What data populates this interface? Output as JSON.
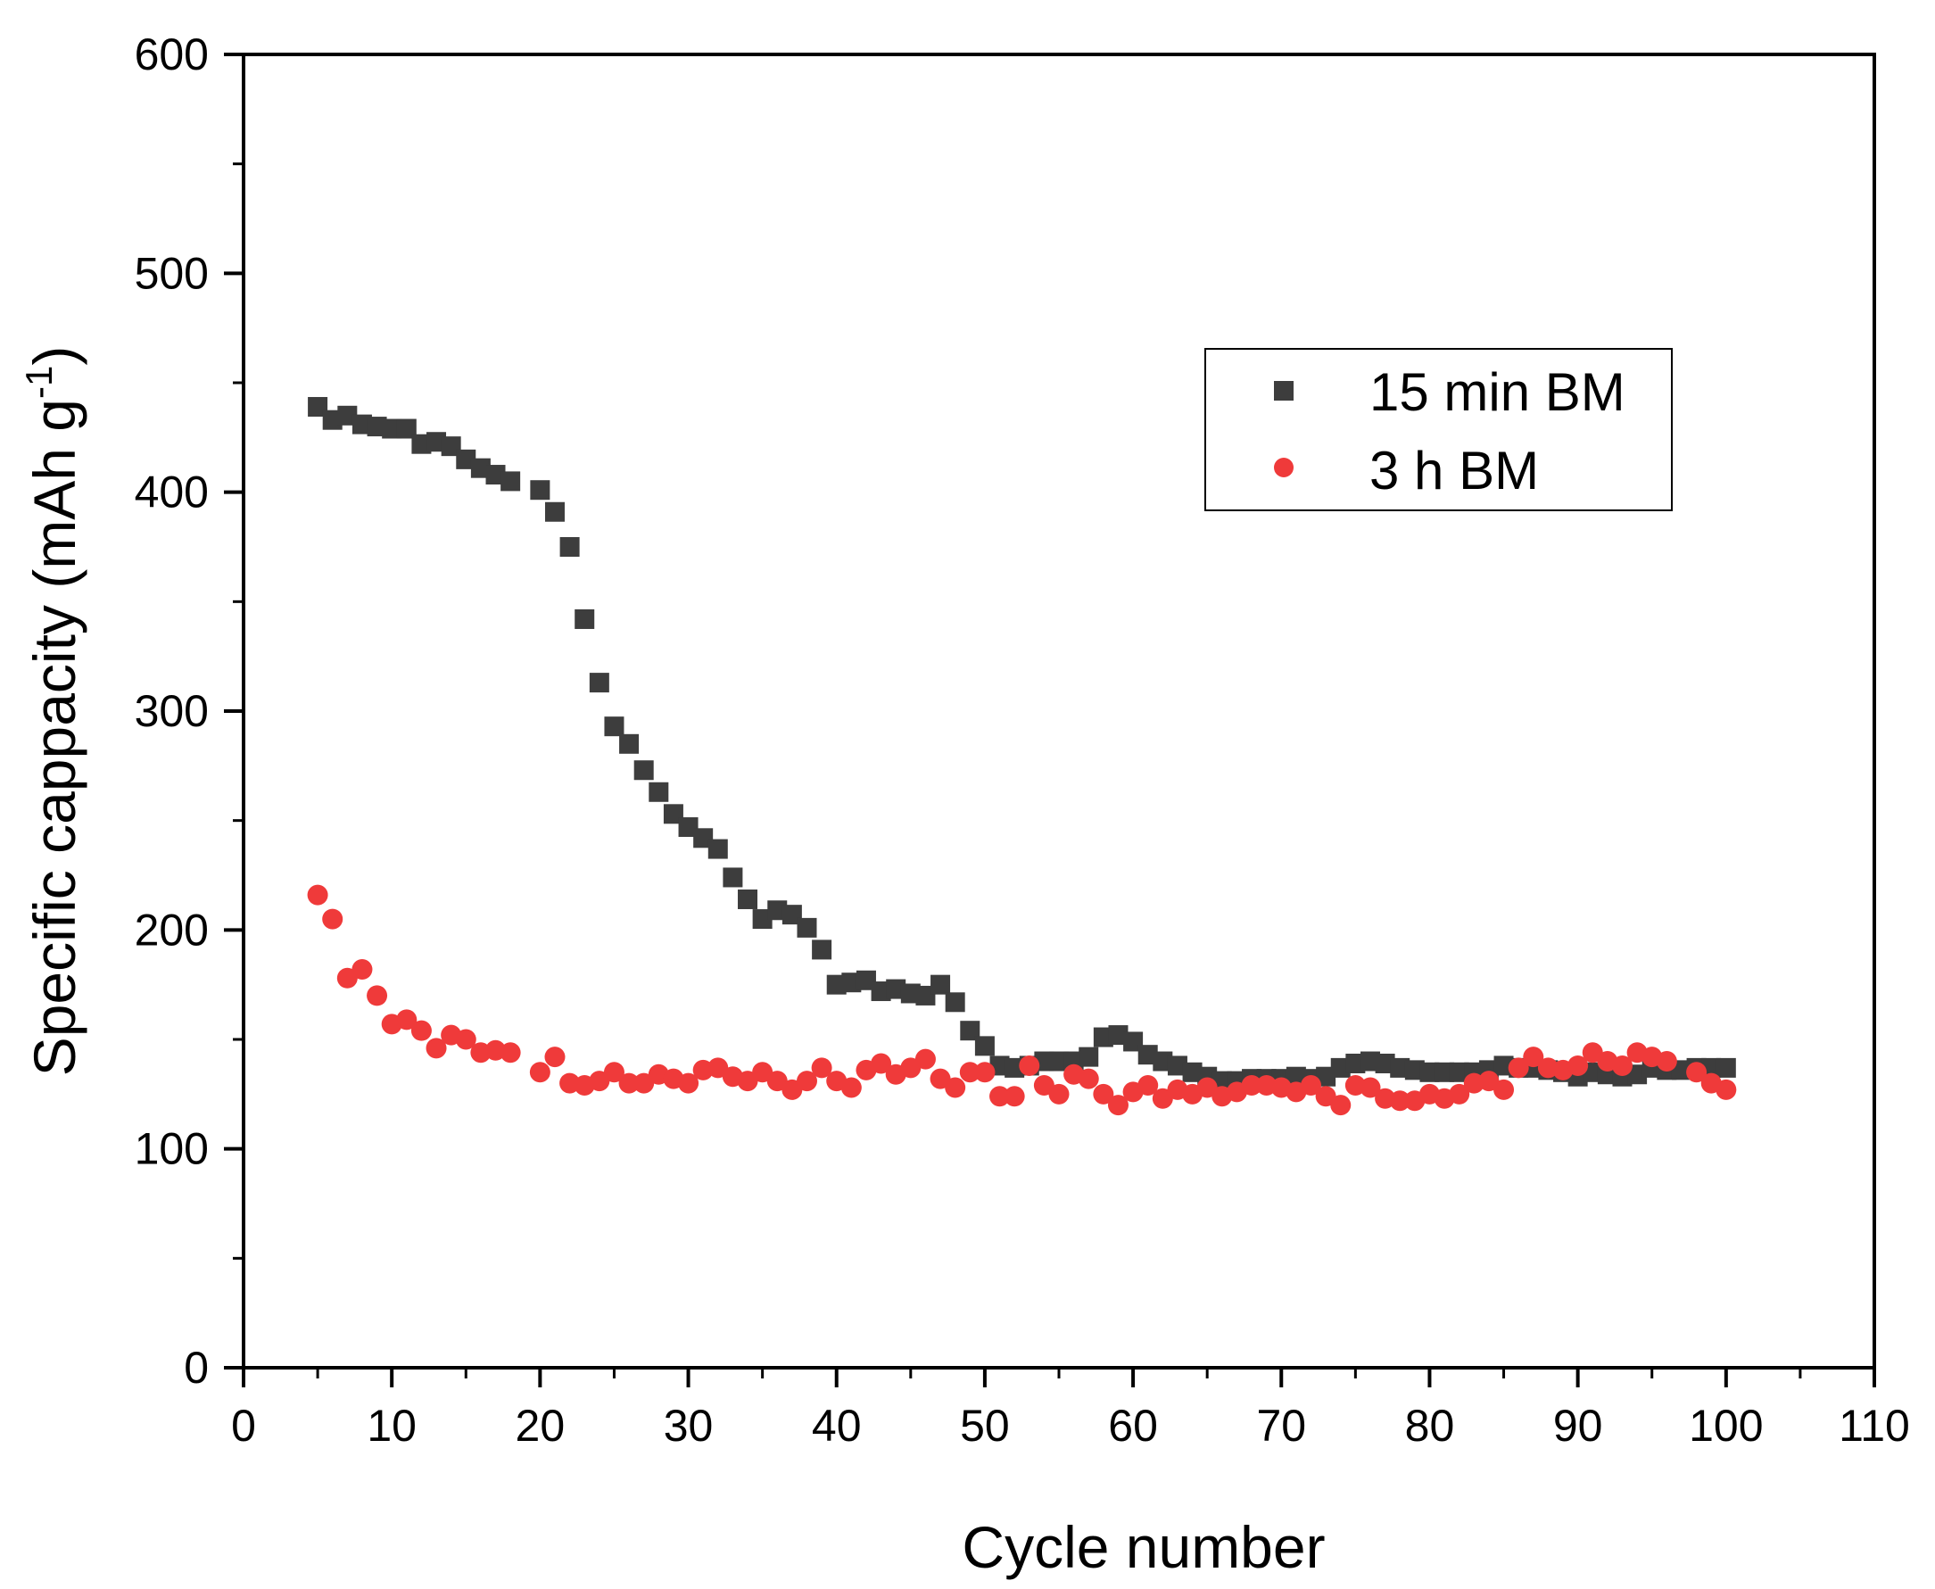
{
  "chart_data": {
    "type": "scatter",
    "title": "",
    "xlabel": "Cycle number",
    "ylabel": {
      "main": "Specific cappacity (mAh g",
      "superscript": "-1",
      "close": ")"
    },
    "xlim": [
      0,
      110
    ],
    "ylim": [
      0,
      600
    ],
    "xticks": [
      "0",
      "10",
      "20",
      "30",
      "40",
      "50",
      "60",
      "70",
      "80",
      "90",
      "100",
      "110"
    ],
    "yticks": [
      "0",
      "100",
      "200",
      "300",
      "400",
      "500",
      "600"
    ],
    "legend_position": "upper-right",
    "series": [
      {
        "name": "15 min BM",
        "marker": "square",
        "color": "#3d3d3d",
        "x": [
          5,
          6,
          7,
          8,
          9,
          10,
          11,
          12,
          13,
          14,
          15,
          16,
          17,
          18,
          20,
          21,
          22,
          23,
          24,
          25,
          26,
          27,
          28,
          29,
          30,
          31,
          32,
          33,
          34,
          35,
          36,
          37,
          38,
          39,
          40,
          41,
          42,
          43,
          44,
          45,
          46,
          47,
          48,
          49,
          50,
          51,
          52,
          53,
          54,
          55,
          56,
          57,
          58,
          59,
          60,
          61,
          62,
          63,
          64,
          65,
          66,
          67,
          68,
          69,
          70,
          71,
          72,
          73,
          74,
          75,
          76,
          77,
          78,
          79,
          80,
          81,
          82,
          83,
          84,
          85,
          86,
          87,
          88,
          89,
          90,
          91,
          92,
          93,
          94,
          95,
          96,
          97,
          98,
          99,
          100
        ],
        "y": [
          439,
          433,
          435,
          431,
          430,
          429,
          429,
          422,
          423,
          421,
          415,
          411,
          408,
          405,
          401,
          391,
          375,
          342,
          313,
          293,
          285,
          273,
          263,
          253,
          247,
          242,
          237,
          224,
          214,
          205,
          209,
          207,
          201,
          191,
          175,
          176,
          177,
          172,
          173,
          171,
          170,
          175,
          167,
          154,
          147,
          138,
          137,
          138,
          140,
          140,
          140,
          142,
          151,
          152,
          149,
          143,
          140,
          138,
          135,
          133,
          131,
          131,
          132,
          132,
          132,
          133,
          132,
          133,
          137,
          139,
          140,
          139,
          137,
          136,
          135,
          135,
          135,
          135,
          136,
          138,
          137,
          137,
          136,
          135,
          133,
          135,
          134,
          133,
          134,
          137,
          136,
          136,
          137,
          137,
          137
        ]
      },
      {
        "name": "3 h BM",
        "marker": "circle",
        "color": "#ef3a3a",
        "x": [
          5,
          6,
          7,
          8,
          9,
          10,
          11,
          12,
          13,
          14,
          15,
          16,
          17,
          18,
          20,
          21,
          22,
          23,
          24,
          25,
          26,
          27,
          28,
          29,
          30,
          31,
          32,
          33,
          34,
          35,
          36,
          37,
          38,
          39,
          40,
          41,
          42,
          43,
          44,
          45,
          46,
          47,
          48,
          49,
          50,
          51,
          52,
          53,
          54,
          55,
          56,
          57,
          58,
          59,
          60,
          61,
          62,
          63,
          64,
          65,
          66,
          67,
          68,
          69,
          70,
          71,
          72,
          73,
          74,
          75,
          76,
          77,
          78,
          79,
          80,
          81,
          82,
          83,
          84,
          85,
          86,
          87,
          88,
          89,
          90,
          91,
          92,
          93,
          94,
          95,
          96,
          98,
          99,
          100
        ],
        "y": [
          216,
          205,
          178,
          182,
          170,
          157,
          159,
          154,
          146,
          152,
          150,
          144,
          145,
          144,
          135,
          142,
          130,
          129,
          131,
          135,
          130,
          130,
          134,
          132,
          130,
          136,
          137,
          133,
          131,
          135,
          131,
          127,
          131,
          137,
          131,
          128,
          136,
          139,
          134,
          137,
          141,
          132,
          128,
          135,
          135,
          124,
          124,
          138,
          129,
          125,
          134,
          132,
          125,
          120,
          126,
          129,
          123,
          127,
          125,
          128,
          124,
          126,
          129,
          129,
          128,
          126,
          129,
          124,
          120,
          129,
          128,
          123,
          122,
          122,
          125,
          123,
          125,
          130,
          131,
          127,
          137,
          142,
          137,
          136,
          138,
          144,
          140,
          138,
          144,
          142,
          140,
          135,
          130,
          127
        ]
      }
    ]
  }
}
